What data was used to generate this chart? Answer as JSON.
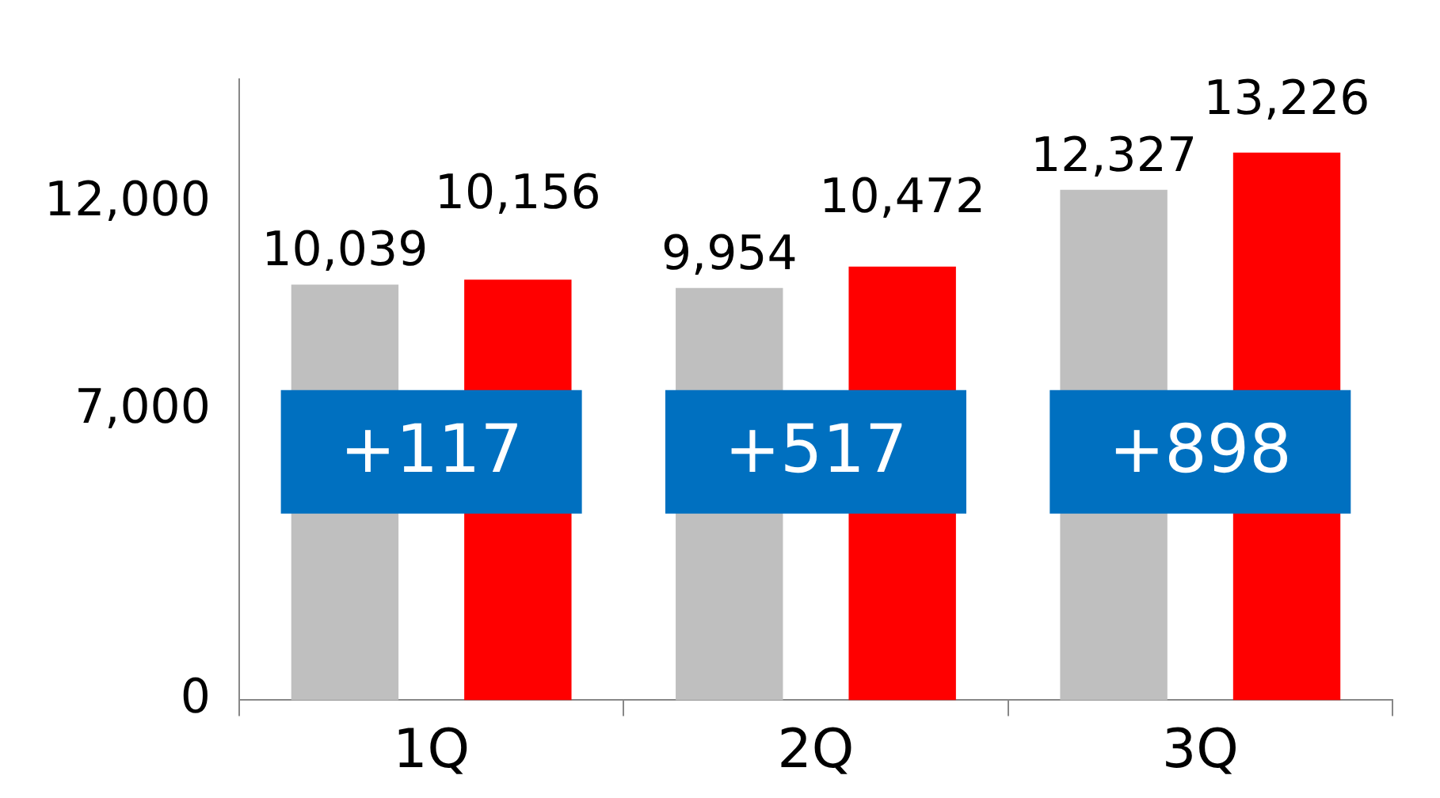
{
  "chart_data": {
    "type": "bar",
    "categories": [
      "1Q",
      "2Q",
      "3Q"
    ],
    "series": [
      {
        "color": "#bfbfbf",
        "values": [
          10039,
          9954,
          12327
        ],
        "value_labels": [
          "10,039",
          "9,954",
          "12,327"
        ]
      },
      {
        "color": "#ff0000",
        "values": [
          10156,
          10472,
          13226
        ],
        "value_labels": [
          "10,156",
          "10,472",
          "13,226"
        ]
      }
    ],
    "ylim": [
      0,
      15000
    ],
    "yticks": [
      {
        "value": 0,
        "label": "0"
      },
      {
        "value": 7000,
        "label": "7,000"
      },
      {
        "value": 12000,
        "label": "12,000"
      }
    ],
    "grid": false,
    "legend": false,
    "annotations": [
      "+117",
      "+517",
      "+898"
    ]
  }
}
